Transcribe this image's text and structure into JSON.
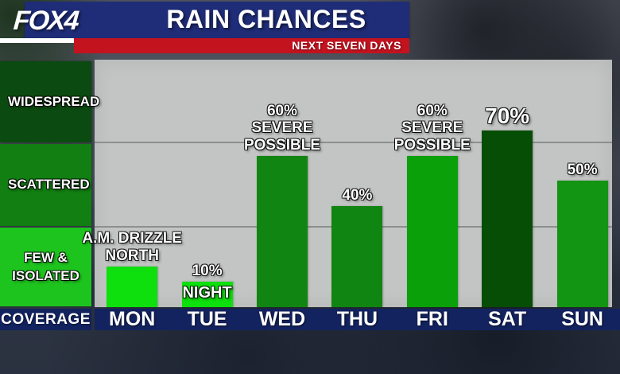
{
  "header": {
    "logo_fox": "FOX",
    "logo_num": "4",
    "title": "RAIN CHANCES",
    "subtitle": "NEXT SEVEN DAYS",
    "colors": {
      "header_blue": "#1f2c77",
      "banner_red": "#c3131f"
    }
  },
  "sidebar": {
    "axis_label": "COVERAGE",
    "categories": [
      {
        "label": "WIDESPREAD",
        "color": "#0b4a10"
      },
      {
        "label": "SCATTERED",
        "color": "#117f11"
      },
      {
        "label": "FEW & ISOLATED",
        "color": "#1ec41e"
      }
    ]
  },
  "chart_data": {
    "type": "bar",
    "title": "RAIN CHANCES",
    "subtitle": "NEXT SEVEN DAYS",
    "categories": [
      "MON",
      "TUE",
      "WED",
      "THU",
      "FRI",
      "SAT",
      "SUN"
    ],
    "series": [
      {
        "name": "rain_chance_percent",
        "values": [
          16,
          10,
          60,
          40,
          60,
          70,
          50
        ]
      }
    ],
    "ylabel": "COVERAGE",
    "ylim": [
      0,
      100
    ],
    "y_bands": [
      "FEW & ISOLATED",
      "SCATTERED",
      "WIDESPREAD"
    ],
    "grid": true,
    "annotations": [
      "MON: A.M. DRIZZLE NORTH (no % shown)",
      "TUE: 10% NIGHT",
      "WED: 60% SEVERE POSSIBLE",
      "THU: 40%",
      "FRI: 60% SEVERE POSSIBLE",
      "SAT: 70%",
      "SUN: 50%"
    ]
  },
  "bars": [
    {
      "day": "MON",
      "value_pct": 16,
      "labels": [
        "A.M. DRIZZLE",
        "NORTH"
      ],
      "on_bar": "",
      "color": "#0de00d",
      "big": false
    },
    {
      "day": "TUE",
      "value_pct": 10,
      "labels": [
        "10%"
      ],
      "on_bar": "NIGHT",
      "color": "#0de00d",
      "big": false
    },
    {
      "day": "WED",
      "value_pct": 60,
      "labels": [
        "60%",
        "SEVERE",
        "POSSIBLE"
      ],
      "on_bar": "",
      "color": "#118511",
      "big": false
    },
    {
      "day": "THU",
      "value_pct": 40,
      "labels": [
        "40%"
      ],
      "on_bar": "",
      "color": "#118511",
      "big": false
    },
    {
      "day": "FRI",
      "value_pct": 60,
      "labels": [
        "60%",
        "SEVERE",
        "POSSIBLE"
      ],
      "on_bar": "",
      "color": "#0aa00a",
      "big": false
    },
    {
      "day": "SAT",
      "value_pct": 70,
      "labels": [
        "70%"
      ],
      "on_bar": "",
      "color": "#064d06",
      "big": true
    },
    {
      "day": "SUN",
      "value_pct": 50,
      "labels": [
        "50%"
      ],
      "on_bar": "",
      "color": "#129512",
      "big": false
    }
  ]
}
